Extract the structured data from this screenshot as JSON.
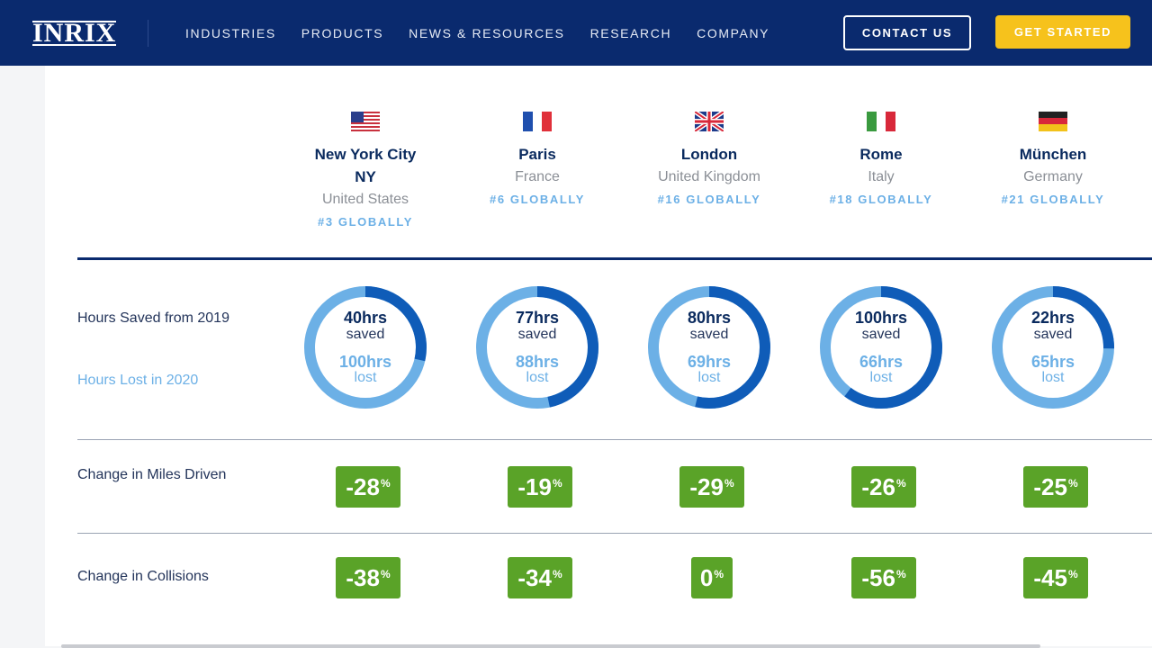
{
  "header": {
    "logo": "INRIX",
    "nav": [
      "INDUSTRIES",
      "PRODUCTS",
      "NEWS & RESOURCES",
      "RESEARCH",
      "COMPANY"
    ],
    "contact_label": "CONTACT US",
    "start_label": "GET STARTED",
    "brand_color": "#0a2a6e",
    "accent_color": "#f6c21c"
  },
  "rows": {
    "hours_saved_label": "Hours Saved from 2019",
    "hours_lost_label": "Hours Lost in 2020",
    "miles_label": "Change in Miles Driven",
    "collisions_label": "Change in Collisions",
    "saved_word": "saved",
    "lost_word": "lost"
  },
  "cities": [
    {
      "city": "New York City",
      "state": "NY",
      "country": "United States",
      "rank": "#3 GLOBALLY",
      "flag": "us-flag-icon",
      "saved": "40hrs",
      "lost": "100hrs",
      "saved_fraction": 0.286,
      "miles": "-28",
      "collisions": "-38"
    },
    {
      "city": "Paris",
      "state": "",
      "country": "France",
      "rank": "#6 GLOBALLY",
      "flag": "france-flag-icon",
      "saved": "77hrs",
      "lost": "88hrs",
      "saved_fraction": 0.467,
      "miles": "-19",
      "collisions": "-34"
    },
    {
      "city": "London",
      "state": "",
      "country": "United Kingdom",
      "rank": "#16 GLOBALLY",
      "flag": "uk-flag-icon",
      "saved": "80hrs",
      "lost": "69hrs",
      "saved_fraction": 0.537,
      "miles": "-29",
      "collisions": "0"
    },
    {
      "city": "Rome",
      "state": "",
      "country": "Italy",
      "rank": "#18 GLOBALLY",
      "flag": "italy-flag-icon",
      "saved": "100hrs",
      "lost": "66hrs",
      "saved_fraction": 0.602,
      "miles": "-26",
      "collisions": "-56"
    },
    {
      "city": "München",
      "state": "",
      "country": "Germany",
      "rank": "#21 GLOBALLY",
      "flag": "germany-flag-icon",
      "saved": "22hrs",
      "lost": "65hrs",
      "saved_fraction": 0.253,
      "miles": "-25",
      "collisions": "-45"
    }
  ],
  "percent_sign": "%",
  "colors": {
    "saved_arc": "#0f5cb8",
    "lost_arc": "#6cb0e6",
    "badge": "#5aa328"
  }
}
